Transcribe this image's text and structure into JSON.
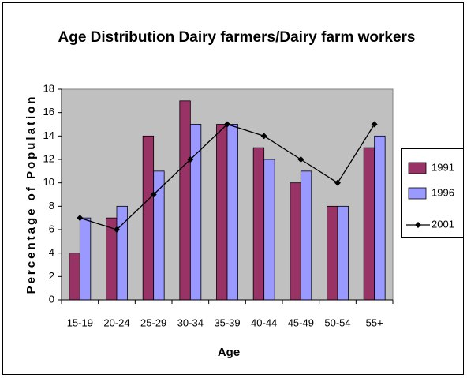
{
  "chart_data": {
    "type": "bar",
    "title": "Age Distribution Dairy farmers/Dairy farm workers",
    "x_label": "Age",
    "y_label": "Percentage of Population",
    "categories": [
      "15-19",
      "20-24",
      "25-29",
      "30-34",
      "35-39",
      "40-44",
      "45-49",
      "50-54",
      "55+"
    ],
    "series": [
      {
        "name": "1991",
        "color": "#993366",
        "type": "bar",
        "values": [
          4,
          7,
          14,
          17,
          15,
          13,
          10,
          8,
          13
        ]
      },
      {
        "name": "1996",
        "color": "#9999ff",
        "type": "bar",
        "values": [
          7,
          8,
          11,
          15,
          15,
          12,
          11,
          8,
          14
        ]
      },
      {
        "name": "2001",
        "color": "#000000",
        "type": "line",
        "values": [
          7,
          6,
          9,
          12,
          15,
          14,
          12,
          10,
          15
        ]
      }
    ],
    "ylim": [
      0,
      18
    ],
    "yticks": [
      0,
      2,
      4,
      6,
      8,
      10,
      12,
      14,
      16,
      18
    ],
    "grid": false,
    "legend": "right",
    "plot_background": "#c0c0c0"
  }
}
